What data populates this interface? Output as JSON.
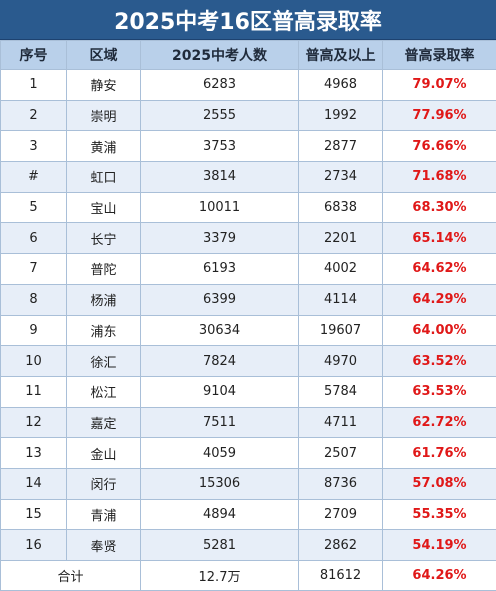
{
  "title": "2025中考16区普高录取率",
  "headers": [
    "序号",
    "区域",
    "2025中考人数",
    "普高及以上",
    "普高录取率"
  ],
  "rows": [
    {
      "no": "1",
      "district": "静安",
      "candidates": "6283",
      "admitted": "4968",
      "rate": "79.07%"
    },
    {
      "no": "2",
      "district": "崇明",
      "candidates": "2555",
      "admitted": "1992",
      "rate": "77.96%"
    },
    {
      "no": "3",
      "district": "黄浦",
      "candidates": "3753",
      "admitted": "2877",
      "rate": "76.66%"
    },
    {
      "no": "#",
      "district": "虹口",
      "candidates": "3814",
      "admitted": "2734",
      "rate": "71.68%"
    },
    {
      "no": "5",
      "district": "宝山",
      "candidates": "10011",
      "admitted": "6838",
      "rate": "68.30%"
    },
    {
      "no": "6",
      "district": "长宁",
      "candidates": "3379",
      "admitted": "2201",
      "rate": "65.14%"
    },
    {
      "no": "7",
      "district": "普陀",
      "candidates": "6193",
      "admitted": "4002",
      "rate": "64.62%"
    },
    {
      "no": "8",
      "district": "杨浦",
      "candidates": "6399",
      "admitted": "4114",
      "rate": "64.29%"
    },
    {
      "no": "9",
      "district": "浦东",
      "candidates": "30634",
      "admitted": "19607",
      "rate": "64.00%"
    },
    {
      "no": "10",
      "district": "徐汇",
      "candidates": "7824",
      "admitted": "4970",
      "rate": "63.52%"
    },
    {
      "no": "11",
      "district": "松江",
      "candidates": "9104",
      "admitted": "5784",
      "rate": "63.53%"
    },
    {
      "no": "12",
      "district": "嘉定",
      "candidates": "7511",
      "admitted": "4711",
      "rate": "62.72%"
    },
    {
      "no": "13",
      "district": "金山",
      "candidates": "4059",
      "admitted": "2507",
      "rate": "61.76%"
    },
    {
      "no": "14",
      "district": "闵行",
      "candidates": "15306",
      "admitted": "8736",
      "rate": "57.08%"
    },
    {
      "no": "15",
      "district": "青浦",
      "candidates": "4894",
      "admitted": "2709",
      "rate": "55.35%"
    },
    {
      "no": "16",
      "district": "奉贤",
      "candidates": "5281",
      "admitted": "2862",
      "rate": "54.19%"
    }
  ],
  "total": {
    "label": "合计",
    "candidates": "12.7万",
    "admitted": "81612",
    "rate": "64.26%"
  },
  "colors": {
    "title_bg": "#2a5a8e",
    "header_bg": "#b9d0ea",
    "stripe": "#e7eef8",
    "rate_red": "#e01818"
  }
}
